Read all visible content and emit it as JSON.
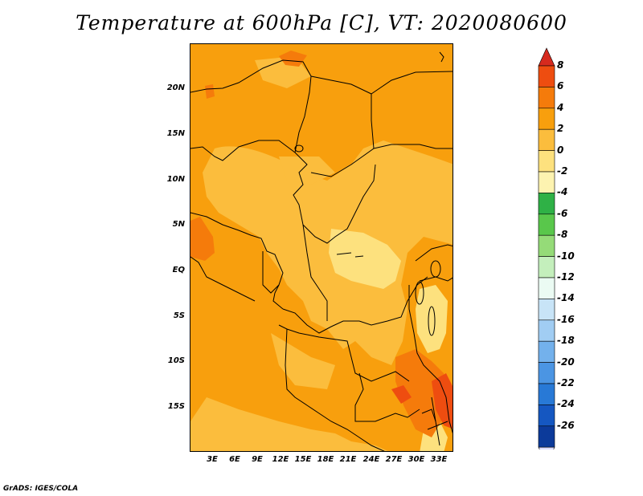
{
  "title": "Temperature at 600hPa [C], VT: 2020080600",
  "footer": "GrADS: IGES/COLA",
  "lat_labels": [
    "20N",
    "15N",
    "10N",
    "5N",
    "EQ",
    "5S",
    "10S",
    "15S"
  ],
  "lon_labels": [
    "3E",
    "6E",
    "9E",
    "12E",
    "15E",
    "18E",
    "21E",
    "24E",
    "27E",
    "30E",
    "33E"
  ],
  "colorbar": {
    "labels": [
      "8",
      "6",
      "4",
      "2",
      "0",
      "-2",
      "-4",
      "-6",
      "-8",
      "-10",
      "-12",
      "-14",
      "-16",
      "-18",
      "-20",
      "-22",
      "-24",
      "-26"
    ],
    "colors": [
      "#d62a1e",
      "#ee4d10",
      "#f57b0b",
      "#f89f0d",
      "#fbbd3d",
      "#fde17e",
      "#fdf3b0",
      "#2fb146",
      "#59c74b",
      "#95db78",
      "#c4efbc",
      "#ebfbf3",
      "#c8e4f7",
      "#a1cdf3",
      "#73b1ec",
      "#4b95e3",
      "#2879d6",
      "#1557c1",
      "#0c3a9a",
      "#0a1d6e"
    ],
    "end_arrow_top": "#d62a1e",
    "end_arrow_bottom": "#dcdcff"
  },
  "map_colors": {
    "base": "#f89f0d",
    "warm_lt_2": "#fbbd3d",
    "pale": "#fde17e",
    "hot": "#f57b0b",
    "hotter": "#ee4d10"
  }
}
